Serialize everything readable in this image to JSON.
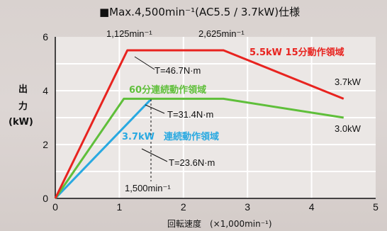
{
  "chart_data": {
    "type": "line",
    "title": "■Max.4,500min⁻¹(AC5.5 / 3.7kW)仕様",
    "ylabel": [
      "出",
      "力",
      "(kW)"
    ],
    "xlabel": "回転速度　(×1,000min⁻¹)",
    "xlim": [
      0,
      5
    ],
    "ylim": [
      0,
      6
    ],
    "xticks": [
      "0",
      "1",
      "2",
      "3",
      "4",
      "5"
    ],
    "yticks": [
      "0",
      "2",
      "4",
      "6"
    ],
    "grid": true,
    "series": [
      {
        "name": "5.5kW 15分動作領域",
        "color": "#e8231f",
        "x": [
          0,
          1.125,
          2.625,
          4.5
        ],
        "y": [
          0,
          5.5,
          5.5,
          3.7
        ]
      },
      {
        "name": "60分連続動作領域",
        "color": "#5fbf3a",
        "x": [
          0,
          1.07,
          2.625,
          4.5
        ],
        "y": [
          0,
          3.7,
          3.7,
          3.0
        ]
      },
      {
        "name": "3.7kW　連続動作領域",
        "color": "#29a9e1",
        "x": [
          0,
          1.5
        ],
        "y": [
          0,
          3.7
        ]
      }
    ],
    "annotations": {
      "speed_1125": "1,125min⁻¹",
      "speed_2625": "2,625min⁻¹",
      "speed_1500": "1,500min⁻¹",
      "torque_red": "T=46.7N·m",
      "torque_green": "T=31.4N·m",
      "torque_blue": "T=23.6N·m",
      "end_red": "3.7kW",
      "end_green": "3.0kW"
    }
  }
}
